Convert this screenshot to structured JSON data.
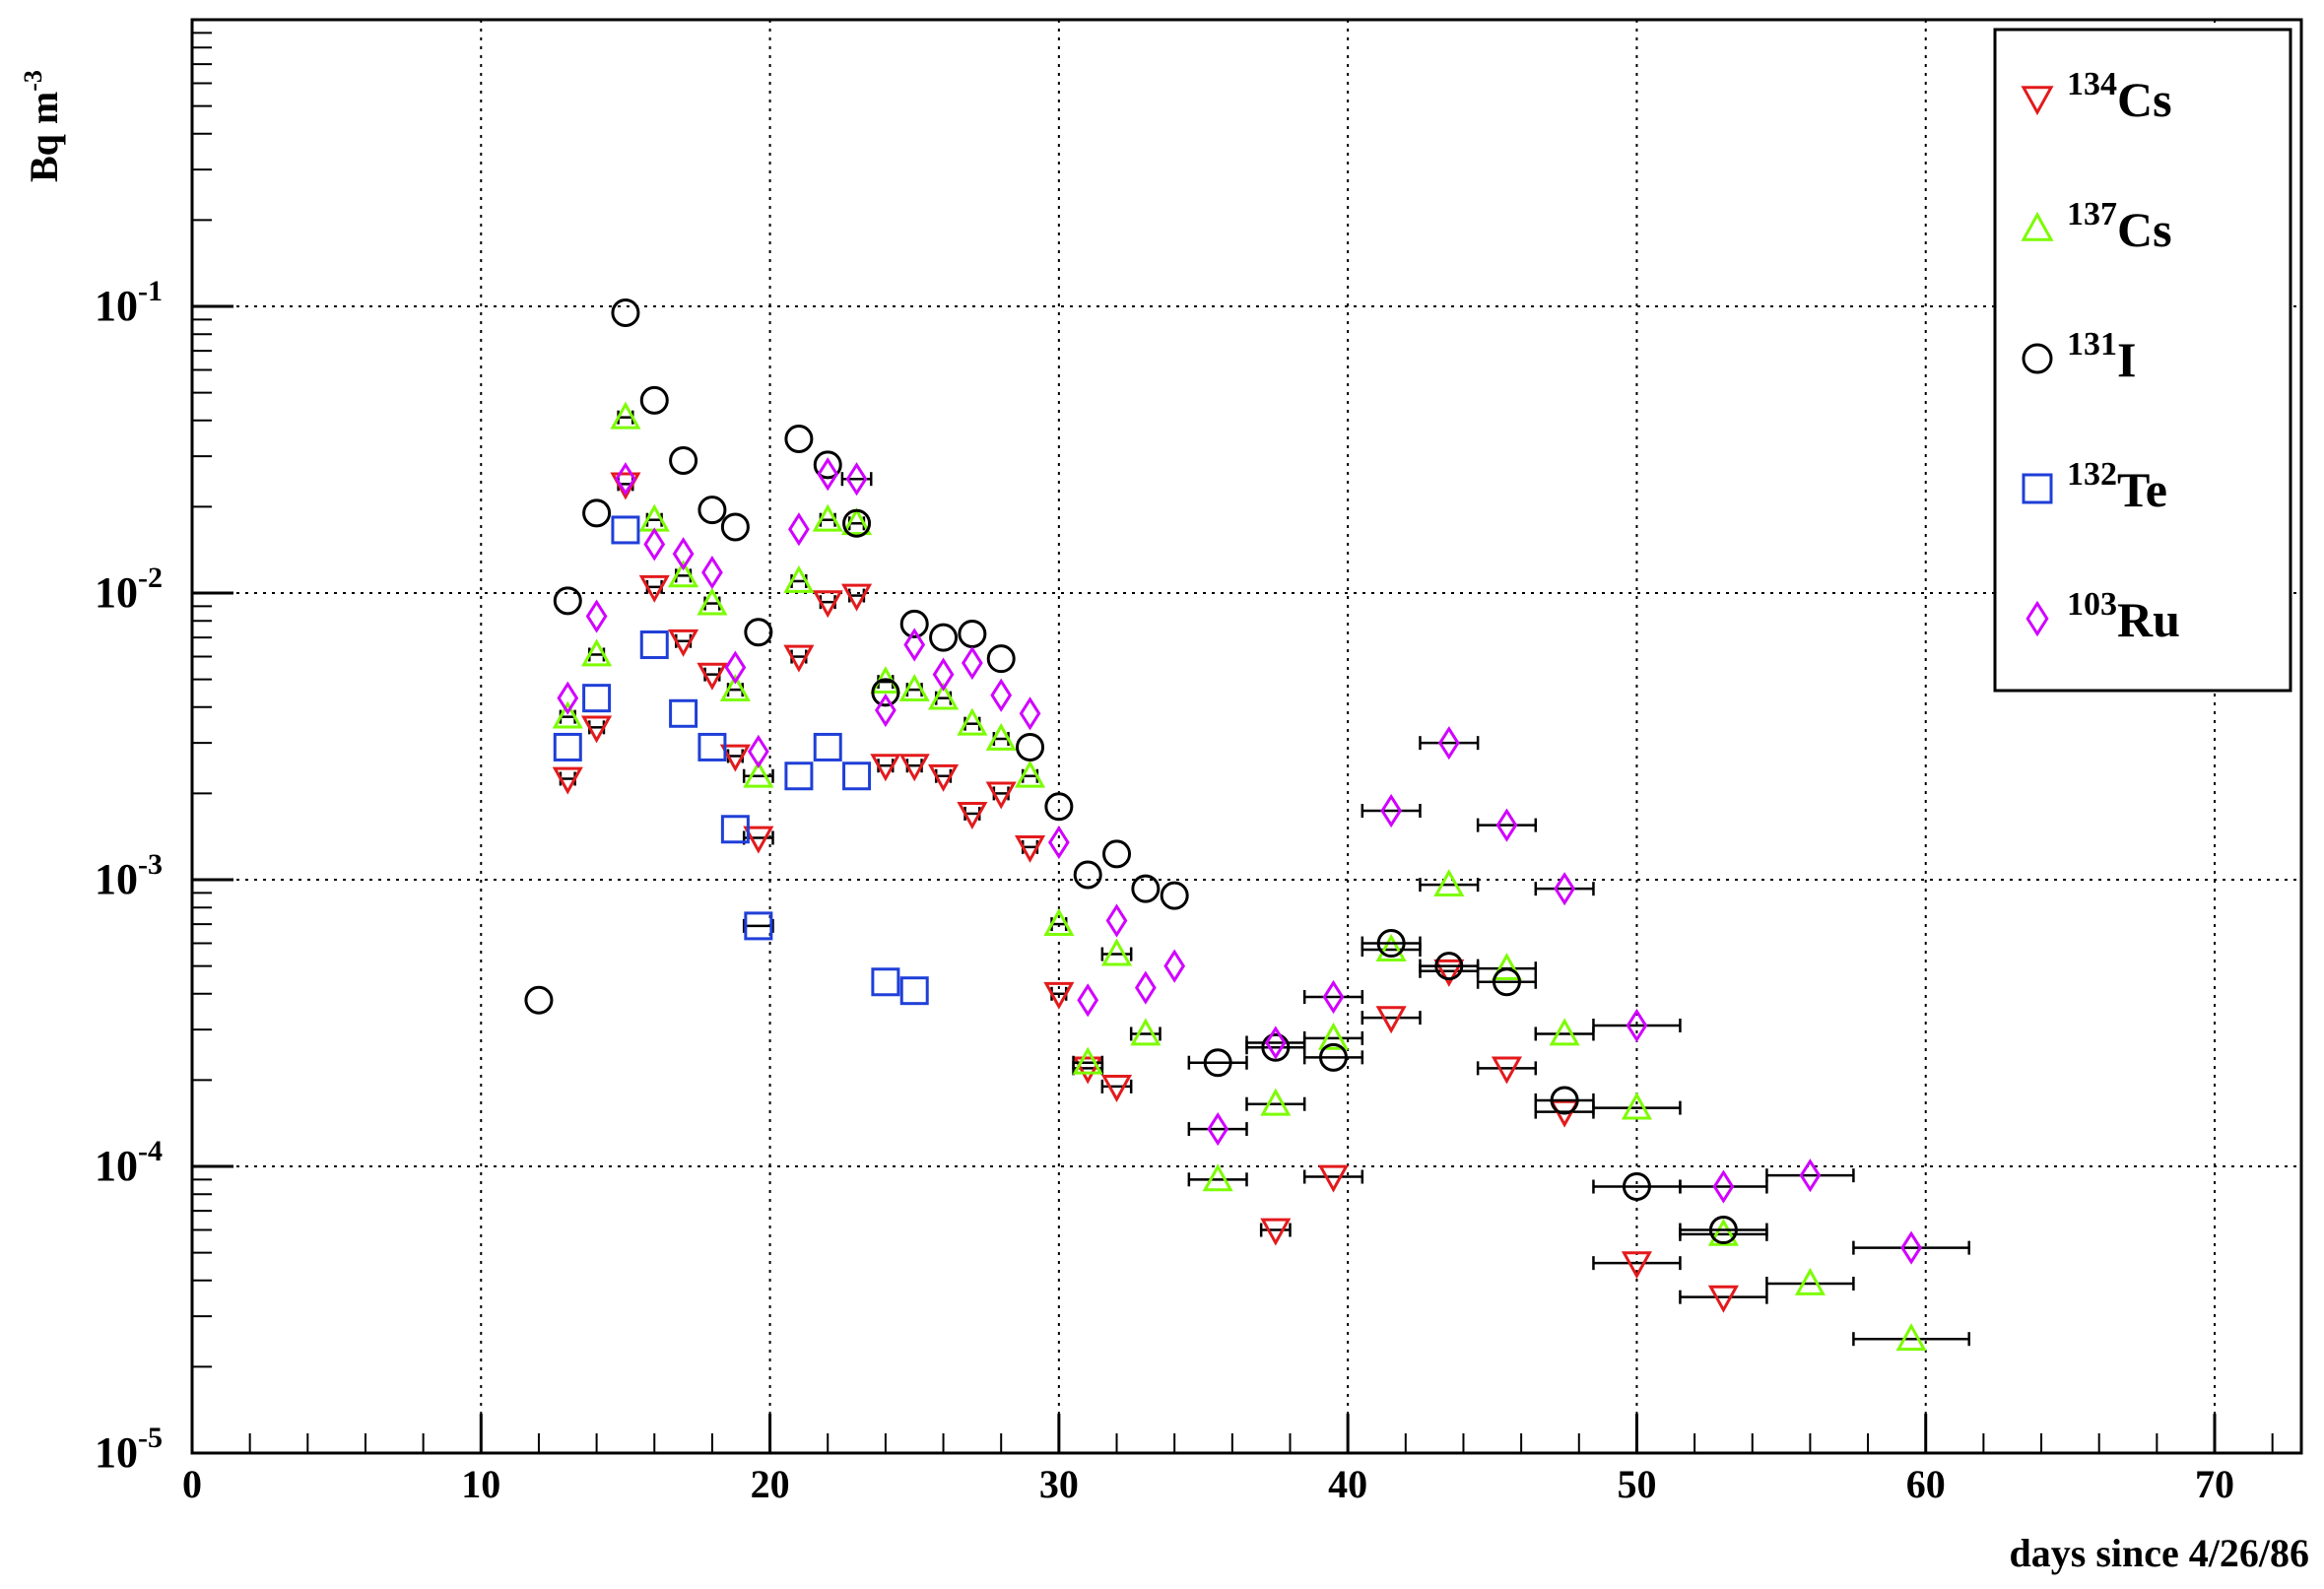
{
  "chart_data": {
    "type": "scatter",
    "xlabel": "days since 4/26/86",
    "ylabel": "Bq m",
    "ylabel_exponent": "-3",
    "xlim": [
      0,
      73
    ],
    "ylim": [
      1e-05,
      1
    ],
    "y_scale": "log",
    "x_ticks": [
      "0",
      "10",
      "20",
      "30",
      "40",
      "50",
      "60",
      "70"
    ],
    "y_ticks": [
      {
        "base": "10",
        "exp": "-5"
      },
      {
        "base": "10",
        "exp": "-4"
      },
      {
        "base": "10",
        "exp": "-3"
      },
      {
        "base": "10",
        "exp": "-2"
      },
      {
        "base": "10",
        "exp": "-1"
      }
    ],
    "grid": true,
    "legend_position": "top-right",
    "series": [
      {
        "name": "Cs",
        "mass": "134",
        "marker": "triangle-down",
        "color": "#e31a1c",
        "points": [
          [
            13,
            0.00225,
            0.25
          ],
          [
            14,
            0.0034,
            0.25
          ],
          [
            15,
            0.024,
            0.25
          ],
          [
            16,
            0.0105,
            0.25
          ],
          [
            17,
            0.0068,
            0.25
          ],
          [
            18,
            0.0052,
            0.25
          ],
          [
            18.8,
            0.0027,
            0.25
          ],
          [
            19.6,
            0.0014,
            0.5
          ],
          [
            21,
            0.006,
            0.25
          ],
          [
            22,
            0.0093,
            0.25
          ],
          [
            23,
            0.0098,
            0.25
          ],
          [
            24,
            0.0025,
            0.25
          ],
          [
            25,
            0.0025,
            0.25
          ],
          [
            26,
            0.0023,
            0.25
          ],
          [
            27,
            0.0017,
            0.25
          ],
          [
            28,
            0.002,
            0.25
          ],
          [
            29,
            0.0013,
            0.25
          ],
          [
            30,
            0.0004,
            0.25
          ],
          [
            31,
            0.00022,
            0.5
          ],
          [
            32,
            0.00019,
            0.5
          ],
          [
            37.5,
            6e-05,
            0.5
          ],
          [
            39.5,
            9.2e-05,
            1
          ],
          [
            41.5,
            0.00033,
            1
          ],
          [
            43.5,
            0.00048,
            1
          ],
          [
            45.5,
            0.00022,
            1
          ],
          [
            47.5,
            0.000155,
            1
          ],
          [
            50,
            4.6e-05,
            1.5
          ],
          [
            53,
            3.5e-05,
            1.5
          ]
        ]
      },
      {
        "name": "Cs",
        "mass": "137",
        "marker": "triangle-up",
        "color": "#7cfc00",
        "points": [
          [
            13,
            0.0037,
            0.25
          ],
          [
            14,
            0.0061,
            0.25
          ],
          [
            15,
            0.041,
            0.25
          ],
          [
            16,
            0.018,
            0.25
          ],
          [
            17,
            0.0115,
            0.25
          ],
          [
            18,
            0.0092,
            0.25
          ],
          [
            18.8,
            0.0046,
            0.25
          ],
          [
            19.6,
            0.0023,
            0.5
          ],
          [
            21,
            0.011,
            0.25
          ],
          [
            22,
            0.018,
            0.25
          ],
          [
            23,
            0.0175,
            0.25
          ],
          [
            24,
            0.0049,
            0.25
          ],
          [
            25,
            0.0046,
            0.25
          ],
          [
            26,
            0.0043,
            0.25
          ],
          [
            27,
            0.0035,
            0.25
          ],
          [
            28,
            0.0031,
            0.25
          ],
          [
            29,
            0.0023,
            0.25
          ],
          [
            30,
            0.0007,
            0.25
          ],
          [
            31,
            0.00023,
            0.5
          ],
          [
            32,
            0.00055,
            0.5
          ],
          [
            33,
            0.00029,
            0.5
          ],
          [
            35.5,
            9e-05,
            1
          ],
          [
            37.5,
            0.000165,
            1
          ],
          [
            39.5,
            0.00028,
            1
          ],
          [
            41.5,
            0.00057,
            1
          ],
          [
            43.5,
            0.00096,
            1
          ],
          [
            45.5,
            0.00049,
            1
          ],
          [
            47.5,
            0.00029,
            1
          ],
          [
            50,
            0.00016,
            1.5
          ],
          [
            53,
            5.8e-05,
            1.5
          ],
          [
            56,
            3.9e-05,
            1.5
          ],
          [
            59.5,
            2.5e-05,
            2
          ]
        ]
      },
      {
        "name": "I",
        "mass": "131",
        "marker": "circle",
        "color": "#000000",
        "points": [
          [
            12,
            0.00038,
            0
          ],
          [
            13,
            0.0094,
            0
          ],
          [
            14,
            0.019,
            0
          ],
          [
            15,
            0.095,
            0
          ],
          [
            16,
            0.047,
            0
          ],
          [
            17,
            0.029,
            0
          ],
          [
            18,
            0.0195,
            0
          ],
          [
            18.8,
            0.017,
            0
          ],
          [
            19.6,
            0.0073,
            0
          ],
          [
            21,
            0.0345,
            0
          ],
          [
            22,
            0.028,
            0
          ],
          [
            23,
            0.0175,
            0
          ],
          [
            24,
            0.0045,
            0
          ],
          [
            25,
            0.0078,
            0
          ],
          [
            26,
            0.007,
            0
          ],
          [
            27,
            0.0072,
            0
          ],
          [
            28,
            0.0059,
            0
          ],
          [
            29,
            0.0029,
            0
          ],
          [
            30,
            0.0018,
            0
          ],
          [
            31,
            0.00104,
            0
          ],
          [
            32,
            0.00123,
            0
          ],
          [
            33,
            0.00093,
            0
          ],
          [
            34,
            0.00088,
            0
          ],
          [
            35.5,
            0.00023,
            1
          ],
          [
            37.5,
            0.00026,
            1
          ],
          [
            39.5,
            0.00024,
            1
          ],
          [
            41.5,
            0.0006,
            1
          ],
          [
            43.5,
            0.0005,
            1
          ],
          [
            45.5,
            0.00044,
            1
          ],
          [
            47.5,
            0.00017,
            1
          ],
          [
            50,
            8.5e-05,
            1.5
          ],
          [
            53,
            6e-05,
            1.5
          ]
        ]
      },
      {
        "name": "Te",
        "mass": "132",
        "marker": "square",
        "color": "#1f3fd8",
        "points": [
          [
            13,
            0.0029,
            0
          ],
          [
            14,
            0.0043,
            0
          ],
          [
            15,
            0.0166,
            0
          ],
          [
            16,
            0.0066,
            0
          ],
          [
            17,
            0.0038,
            0
          ],
          [
            18,
            0.0029,
            0
          ],
          [
            18.8,
            0.0015,
            0
          ],
          [
            19.6,
            0.00069,
            0.5
          ],
          [
            21,
            0.0023,
            0
          ],
          [
            22,
            0.0029,
            0
          ],
          [
            23,
            0.0023,
            0
          ],
          [
            24,
            0.00044,
            0
          ],
          [
            25,
            0.00041,
            0
          ]
        ]
      },
      {
        "name": "Ru",
        "mass": "103",
        "marker": "diamond",
        "color": "#d100ff",
        "points": [
          [
            13,
            0.0043,
            0
          ],
          [
            14,
            0.0083,
            0
          ],
          [
            15,
            0.025,
            0
          ],
          [
            16,
            0.0148,
            0
          ],
          [
            17,
            0.0137,
            0
          ],
          [
            18,
            0.0118,
            0
          ],
          [
            18.8,
            0.0055,
            0
          ],
          [
            19.6,
            0.0028,
            0
          ],
          [
            21,
            0.0167,
            0
          ],
          [
            22,
            0.026,
            0
          ],
          [
            23,
            0.025,
            0.5
          ],
          [
            24,
            0.0039,
            0
          ],
          [
            25,
            0.0066,
            0
          ],
          [
            26,
            0.0052,
            0
          ],
          [
            27,
            0.0057,
            0
          ],
          [
            28,
            0.0044,
            0
          ],
          [
            29,
            0.0038,
            0
          ],
          [
            30,
            0.00135,
            0
          ],
          [
            31,
            0.00038,
            0
          ],
          [
            32,
            0.00072,
            0
          ],
          [
            33,
            0.00042,
            0
          ],
          [
            34,
            0.0005,
            0
          ],
          [
            35.5,
            0.000135,
            1
          ],
          [
            37.5,
            0.00027,
            1
          ],
          [
            39.5,
            0.00039,
            1
          ],
          [
            41.5,
            0.00174,
            1
          ],
          [
            43.5,
            0.003,
            1
          ],
          [
            45.5,
            0.00155,
            1
          ],
          [
            47.5,
            0.00093,
            1
          ],
          [
            50,
            0.00031,
            1.5
          ],
          [
            53,
            8.5e-05,
            1.5
          ],
          [
            56,
            9.3e-05,
            1.5
          ],
          [
            59.5,
            5.2e-05,
            2
          ]
        ]
      }
    ]
  }
}
